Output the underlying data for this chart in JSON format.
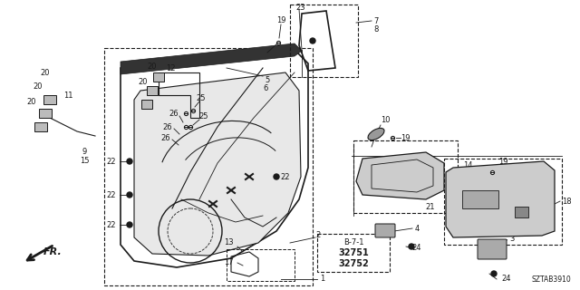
{
  "diagram_id": "SZTAB3910",
  "bg_color": "#ffffff",
  "fig_width": 6.4,
  "fig_height": 3.2,
  "dpi": 100
}
